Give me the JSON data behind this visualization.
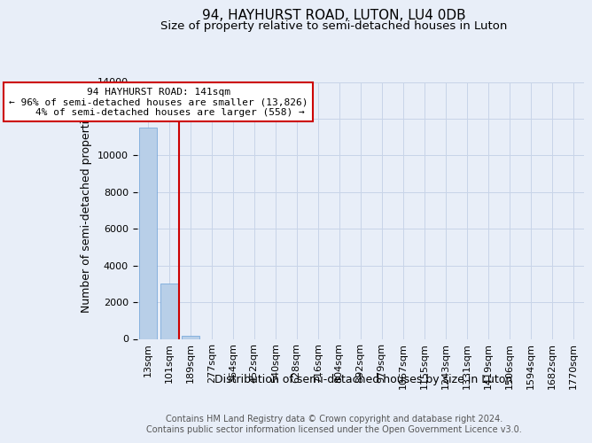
{
  "title": "94, HAYHURST ROAD, LUTON, LU4 0DB",
  "subtitle": "Size of property relative to semi-detached houses in Luton",
  "xlabel": "Distribution of semi-detached houses by size in Luton",
  "ylabel": "Number of semi-detached properties",
  "footer_line1": "Contains HM Land Registry data © Crown copyright and database right 2024.",
  "footer_line2": "Contains public sector information licensed under the Open Government Licence v3.0.",
  "bar_labels": [
    "13sqm",
    "101sqm",
    "189sqm",
    "277sqm",
    "364sqm",
    "452sqm",
    "540sqm",
    "628sqm",
    "716sqm",
    "804sqm",
    "892sqm",
    "979sqm",
    "1067sqm",
    "1155sqm",
    "1243sqm",
    "1331sqm",
    "1419sqm",
    "1506sqm",
    "1594sqm",
    "1682sqm",
    "1770sqm"
  ],
  "bar_heights": [
    11500,
    3000,
    150,
    0,
    0,
    0,
    0,
    0,
    0,
    0,
    0,
    0,
    0,
    0,
    0,
    0,
    0,
    0,
    0,
    0,
    0
  ],
  "bar_color": "#b8cfe8",
  "bar_edge_color": "#6a9fd8",
  "ylim": [
    0,
    14000
  ],
  "yticks": [
    0,
    2000,
    4000,
    6000,
    8000,
    10000,
    12000,
    14000
  ],
  "red_line_x": 1.45,
  "annotation_line1": "94 HAYHURST ROAD: 141sqm",
  "annotation_line2": "← 96% of semi-detached houses are smaller (13,826)",
  "annotation_line3": "    4% of semi-detached houses are larger (558) →",
  "annotation_box_color": "#ffffff",
  "annotation_border_color": "#cc0000",
  "grid_color": "#c8d4e8",
  "background_color": "#e8eef8",
  "title_fontsize": 11,
  "subtitle_fontsize": 9.5,
  "axis_label_fontsize": 9,
  "tick_fontsize": 8,
  "annotation_fontsize": 8,
  "footer_fontsize": 7
}
